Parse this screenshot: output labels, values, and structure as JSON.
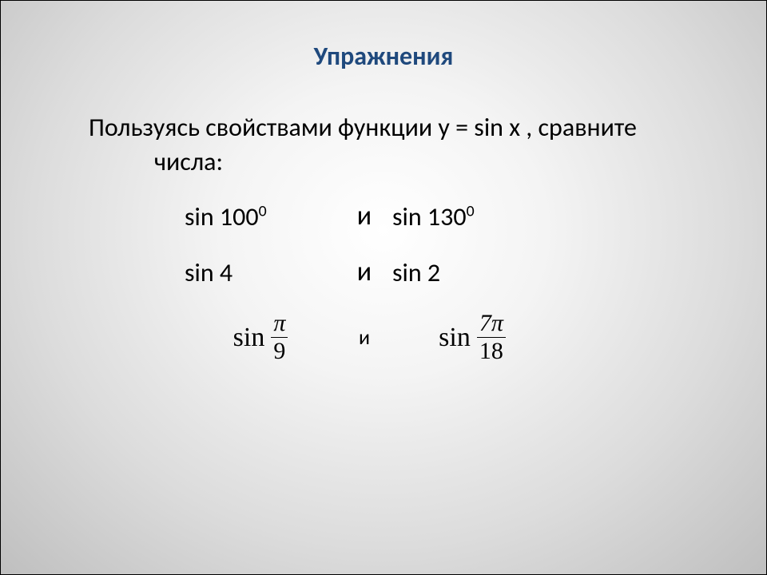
{
  "colors": {
    "title": "#1f497d",
    "text": "#000000",
    "bg_center": "#ffffff",
    "bg_mid": "#dcdcdc",
    "bg_edge": "#bfbfbf"
  },
  "title": "Упражнения",
  "prompt": {
    "line1": "Пользуясь свойствами функции y = sin x , сравните",
    "line2": "числа:"
  },
  "rows": [
    {
      "left_prefix": "sin 100",
      "left_sup": "0",
      "mid": "и",
      "right_prefix": "sin 130",
      "right_sup": "0"
    },
    {
      "left": "sin 4",
      "mid": "и",
      "right": "sin 2"
    }
  ],
  "mathrow": {
    "left": {
      "fn": "sin",
      "num": "π",
      "den": "9"
    },
    "mid": "и",
    "right": {
      "fn": "sin",
      "num": "7π",
      "den": "18"
    }
  },
  "typography": {
    "title_fontsize": 32,
    "body_fontsize": 32,
    "math_fn_fontsize": 34,
    "math_frac_fontsize": 30,
    "font_family_body": "Calibri",
    "font_family_math": "Times New Roman"
  }
}
